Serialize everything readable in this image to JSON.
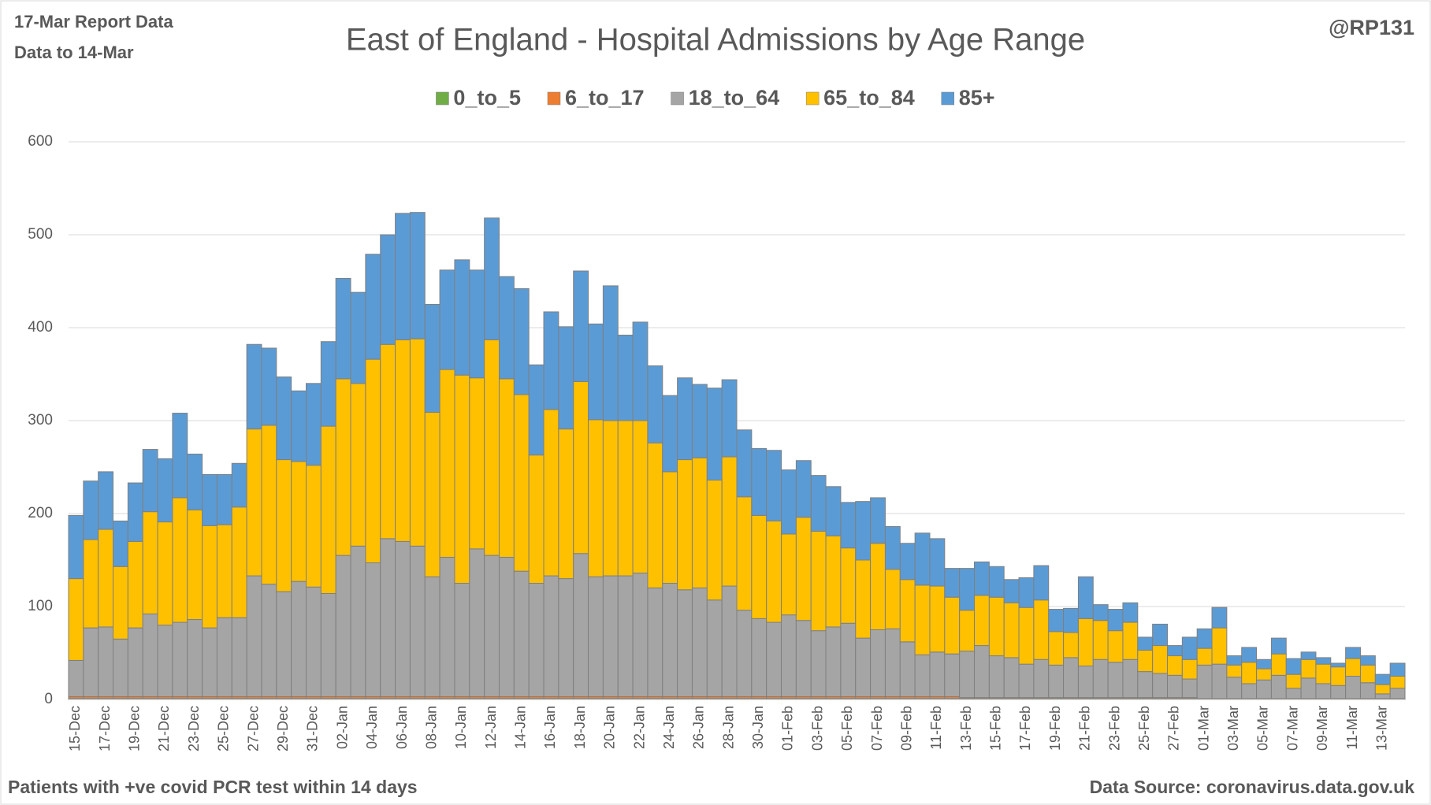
{
  "chart_data": {
    "type": "stacked-bar",
    "title": "East of England - Hospital Admissions by Age Range",
    "annotations": [
      "17-Mar Report Data",
      "Data to 14-Mar",
      "@RP131",
      "Patients with  +ve covid PCR test within 14 days",
      "Data Source: coronavirus.data.gov.uk"
    ],
    "categories": [
      "15-Dec",
      null,
      "17-Dec",
      null,
      "19-Dec",
      null,
      "21-Dec",
      null,
      "23-Dec",
      null,
      "25-Dec",
      null,
      "27-Dec",
      null,
      "29-Dec",
      null,
      "31-Dec",
      null,
      "02-Jan",
      null,
      "04-Jan",
      null,
      "06-Jan",
      null,
      "08-Jan",
      null,
      "10-Jan",
      null,
      "12-Jan",
      null,
      "14-Jan",
      null,
      "16-Jan",
      null,
      "18-Jan",
      null,
      "20-Jan",
      null,
      "22-Jan",
      null,
      "24-Jan",
      null,
      "26-Jan",
      null,
      "28-Jan",
      null,
      "30-Jan",
      null,
      "01-Feb",
      null,
      "03-Feb",
      null,
      "05-Feb",
      null,
      "07-Feb",
      null,
      "09-Feb",
      null,
      "11-Feb",
      null,
      "13-Feb",
      null,
      "15-Feb",
      null,
      "17-Feb",
      null,
      "19-Feb",
      null,
      "21-Feb",
      null,
      "23-Feb",
      null,
      "25-Feb",
      null,
      "27-Feb",
      null,
      "01-Mar",
      null,
      "03-Mar",
      null,
      "05-Mar",
      null,
      "07-Mar",
      null,
      "09-Mar",
      null,
      "11-Mar",
      null,
      "13-Mar",
      null
    ],
    "series": [
      {
        "name": "0_to_5",
        "color": "#70ad47",
        "values": [
          1,
          1,
          1,
          1,
          1,
          1,
          1,
          1,
          1,
          1,
          1,
          1,
          1,
          1,
          1,
          1,
          1,
          1,
          1,
          1,
          1,
          1,
          1,
          1,
          1,
          1,
          1,
          1,
          1,
          1,
          1,
          1,
          1,
          1,
          1,
          1,
          1,
          1,
          1,
          1,
          1,
          1,
          1,
          1,
          1,
          1,
          1,
          1,
          1,
          1,
          1,
          1,
          1,
          1,
          1,
          1,
          1,
          1,
          1,
          1,
          1,
          1,
          1,
          1,
          1,
          1,
          1,
          1,
          1,
          1,
          1,
          1,
          1,
          1,
          1,
          1,
          0,
          0,
          0,
          0,
          0,
          0,
          0,
          0,
          0,
          0,
          0,
          0,
          0,
          0
        ]
      },
      {
        "name": "6_to_17",
        "color": "#ed7d31",
        "values": [
          2,
          2,
          2,
          2,
          2,
          2,
          2,
          2,
          2,
          2,
          2,
          2,
          2,
          2,
          2,
          2,
          2,
          2,
          2,
          2,
          2,
          2,
          2,
          2,
          2,
          2,
          2,
          2,
          2,
          2,
          2,
          2,
          2,
          2,
          2,
          2,
          2,
          2,
          2,
          2,
          2,
          2,
          2,
          2,
          2,
          2,
          2,
          2,
          2,
          2,
          2,
          2,
          2,
          2,
          2,
          2,
          2,
          2,
          2,
          2,
          1,
          1,
          1,
          1,
          1,
          1,
          1,
          1,
          1,
          1,
          1,
          1,
          1,
          1,
          1,
          1,
          1,
          1,
          1,
          1,
          1,
          1,
          1,
          1,
          1,
          1,
          1,
          1,
          1,
          1
        ]
      },
      {
        "name": "18_to_64",
        "color": "#a5a5a5",
        "values": [
          39,
          74,
          75,
          62,
          74,
          89,
          77,
          80,
          83,
          74,
          85,
          85,
          130,
          121,
          113,
          124,
          118,
          111,
          152,
          162,
          144,
          170,
          167,
          162,
          129,
          150,
          122,
          159,
          152,
          150,
          135,
          122,
          130,
          127,
          154,
          129,
          130,
          130,
          133,
          117,
          122,
          115,
          117,
          104,
          119,
          93,
          84,
          80,
          88,
          82,
          71,
          75,
          79,
          63,
          72,
          73,
          59,
          45,
          48,
          46,
          50,
          56,
          45,
          43,
          36,
          41,
          35,
          43,
          34,
          41,
          38,
          41,
          28,
          26,
          24,
          20,
          36,
          37,
          23,
          16,
          20,
          25,
          11,
          22,
          16,
          14,
          24,
          17,
          5,
          11
        ]
      },
      {
        "name": "65_to_84",
        "color": "#ffc000",
        "values": [
          88,
          95,
          105,
          78,
          93,
          110,
          111,
          134,
          118,
          110,
          100,
          119,
          158,
          171,
          142,
          129,
          131,
          180,
          190,
          175,
          219,
          209,
          217,
          223,
          177,
          202,
          224,
          184,
          232,
          192,
          190,
          138,
          179,
          161,
          185,
          169,
          167,
          167,
          164,
          156,
          120,
          140,
          140,
          129,
          139,
          122,
          111,
          109,
          87,
          111,
          107,
          98,
          81,
          84,
          93,
          64,
          67,
          75,
          71,
          61,
          44,
          54,
          63,
          59,
          61,
          64,
          36,
          27,
          51,
          42,
          34,
          40,
          23,
          30,
          21,
          21,
          18,
          39,
          13,
          23,
          12,
          23,
          15,
          20,
          21,
          20,
          19,
          19,
          10,
          13
        ]
      },
      {
        "name": "85+",
        "color": "#5b9bd5",
        "values": [
          68,
          63,
          62,
          49,
          63,
          67,
          68,
          91,
          60,
          55,
          54,
          47,
          91,
          83,
          89,
          76,
          88,
          91,
          108,
          98,
          113,
          118,
          136,
          136,
          116,
          107,
          124,
          116,
          131,
          110,
          114,
          97,
          105,
          110,
          119,
          103,
          145,
          92,
          106,
          83,
          82,
          88,
          79,
          99,
          83,
          72,
          72,
          76,
          69,
          61,
          60,
          53,
          49,
          63,
          49,
          46,
          39,
          56,
          51,
          31,
          45,
          36,
          33,
          25,
          32,
          37,
          24,
          26,
          45,
          17,
          23,
          21,
          14,
          23,
          11,
          24,
          21,
          22,
          10,
          16,
          10,
          17,
          17,
          8,
          7,
          4,
          12,
          10,
          11,
          14
        ]
      }
    ],
    "ylim": [
      0,
      600
    ],
    "yticks": [
      0,
      100,
      200,
      300,
      400,
      500,
      600
    ],
    "grid": true,
    "legend": "top"
  }
}
